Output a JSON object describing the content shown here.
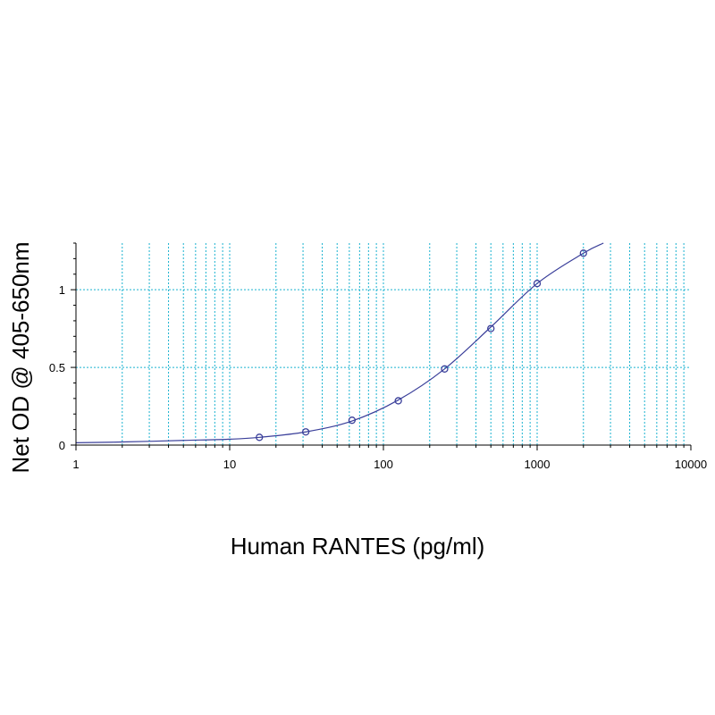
{
  "chart_data": {
    "type": "scatter",
    "xlabel": "Human RANTES (pg/ml)",
    "ylabel": "Net OD @ 405-650nm",
    "x_scale": "log",
    "xlim": [
      1,
      10000
    ],
    "ylim": [
      0,
      1.3
    ],
    "x_ticks": [
      1,
      10,
      100,
      1000,
      10000
    ],
    "x_tick_labels": [
      "1",
      "10",
      "100",
      "1000",
      "10000"
    ],
    "y_ticks": [
      0,
      0.5,
      1
    ],
    "y_tick_labels": [
      "0",
      "0.5",
      "1"
    ],
    "grid": true,
    "legend": "none",
    "colors": {
      "series": "#3a3f9a",
      "grid": "#1ab2d0",
      "axis": "#000000"
    },
    "series": [
      {
        "x": [
          15.6,
          31.25,
          62.5,
          125,
          250,
          500,
          1000,
          2000
        ],
        "y": [
          0.05,
          0.085,
          0.16,
          0.285,
          0.49,
          0.75,
          1.04,
          1.235
        ]
      }
    ],
    "fit_curve": {
      "x": [
        1,
        2,
        5,
        10,
        15.6,
        31.25,
        62.5,
        125,
        250,
        500,
        1000,
        2000,
        2700
      ],
      "y": [
        0.015,
        0.02,
        0.03,
        0.038,
        0.05,
        0.085,
        0.155,
        0.29,
        0.49,
        0.76,
        1.04,
        1.235,
        1.3
      ]
    }
  }
}
